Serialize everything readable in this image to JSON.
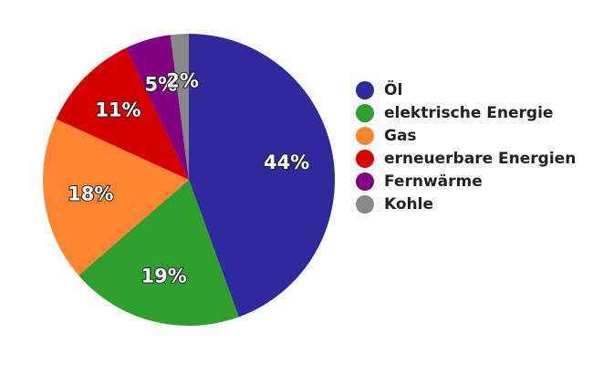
{
  "chart_data": {
    "type": "pie",
    "title": "",
    "legend_position": "right",
    "start_angle_deg": 0,
    "direction": "clockwise",
    "categories": [
      "Öl",
      "elektrische Energie",
      "Gas",
      "erneuerbare Energien",
      "Fernwärme",
      "Kohle"
    ],
    "values": [
      44,
      19,
      18,
      11,
      5,
      2
    ],
    "labels": [
      "44%",
      "19%",
      "18%",
      "11%",
      "5%",
      "2%"
    ],
    "colors": [
      "#2e2a9e",
      "#2e9e2e",
      "#ff8330",
      "#d40000",
      "#800080",
      "#888888"
    ]
  }
}
